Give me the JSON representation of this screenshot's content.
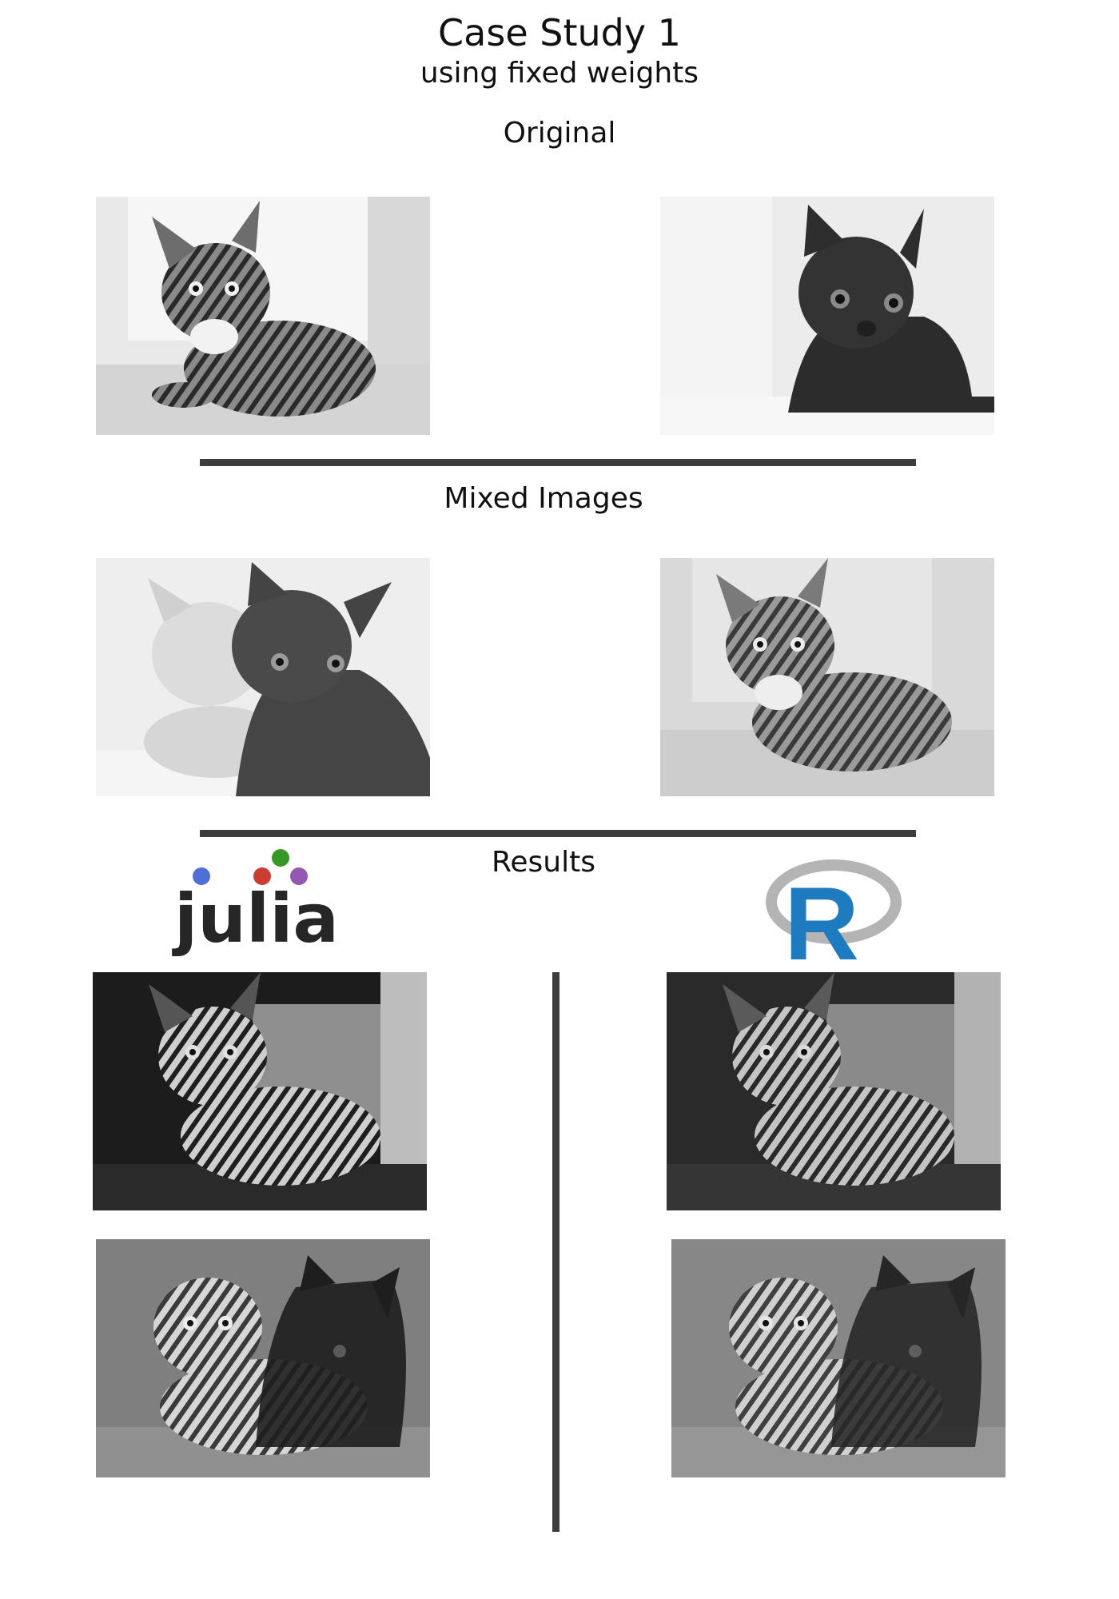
{
  "header": {
    "title": "Case Study 1",
    "subtitle": "using fixed weights"
  },
  "sections": {
    "original": "Original",
    "mixed": "Mixed Images",
    "results": "Results"
  },
  "logos": {
    "julia": "julia",
    "r": "R"
  },
  "colors": {
    "rule": "#3d3d3d",
    "julia_text": "#262626",
    "julia_dot_blue": "#4f6ed6",
    "julia_dot_red": "#cb3c33",
    "julia_dot_green": "#389826",
    "julia_dot_purple": "#9558b2",
    "r_letter": "#1f7bbf",
    "r_ring": "#b4b4b4"
  },
  "images": {
    "original_left": "tabby-cat-icon",
    "original_right": "black-cat-icon",
    "mixed_left": "mixed-cat-icon",
    "mixed_right": "mixed-cat-icon",
    "julia_result_top": "tabby-cat-icon",
    "r_result_top": "tabby-cat-icon",
    "julia_result_bottom": "mixed-cat-icon",
    "r_result_bottom": "mixed-cat-icon"
  }
}
